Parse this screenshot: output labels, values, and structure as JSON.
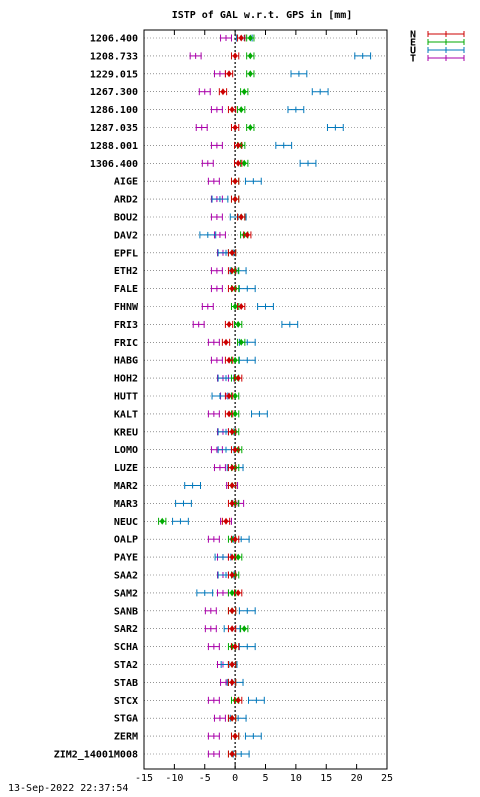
{
  "chart_data": {
    "type": "scatter",
    "title": "ISTP of GAL w.r.t. GPS in [mm]",
    "timestamp": "13-Sep-2022 22:37:54",
    "xlim": [
      -15,
      25
    ],
    "xticks": [
      -15,
      -10,
      -5,
      0,
      5,
      10,
      15,
      20,
      25
    ],
    "grid": "horizontal dotted",
    "legend_position": "top-right",
    "stations": [
      "1206.400",
      "1208.733",
      "1229.015",
      "1267.300",
      "1286.100",
      "1287.035",
      "1288.001",
      "1306.400",
      "AIGE",
      "ARD2",
      "BOU2",
      "DAV2",
      "EPFL",
      "ETH2",
      "FALE",
      "FHNW",
      "FRI3",
      "FRIC",
      "HABG",
      "HOH2",
      "HUTT",
      "KALT",
      "KREU",
      "LOMO",
      "LUZE",
      "MAR2",
      "MAR3",
      "NEUC",
      "OALP",
      "PAYE",
      "SAA2",
      "SAM2",
      "SANB",
      "SAR2",
      "SCHA",
      "STA2",
      "STAB",
      "STCX",
      "STGA",
      "ZERM",
      "ZIM2_14001M008"
    ],
    "series": [
      {
        "name": "N",
        "color": "#cc0000",
        "values": [
          1.0,
          0.0,
          -1.0,
          -2.0,
          -0.5,
          0.0,
          0.5,
          0.5,
          0.0,
          0.0,
          1.0,
          2.0,
          -0.5,
          -0.5,
          -0.5,
          1.0,
          -1.0,
          -1.5,
          -1.0,
          0.5,
          -1.0,
          -1.0,
          -0.5,
          0.0,
          -0.5,
          -0.5,
          -0.5,
          -1.5,
          0.0,
          -0.5,
          -0.5,
          0.5,
          -0.5,
          -0.5,
          0.0,
          -0.5,
          -0.5,
          0.5,
          -0.5,
          0.0,
          -0.5
        ]
      },
      {
        "name": "E",
        "color": "#00aa00",
        "values": [
          2.5,
          2.5,
          2.5,
          1.5,
          1.0,
          2.5,
          1.0,
          1.5,
          0.0,
          0.0,
          1.0,
          1.5,
          -0.5,
          0.0,
          0.0,
          0.0,
          0.5,
          1.0,
          0.0,
          0.0,
          0.0,
          0.0,
          0.0,
          0.5,
          0.0,
          -0.5,
          0.0,
          -12.0,
          -0.5,
          0.5,
          0.0,
          -0.5,
          -0.5,
          1.5,
          -0.5,
          -0.5,
          -0.5,
          0.0,
          -0.5,
          0.0,
          -0.5
        ]
      },
      {
        "name": "U",
        "color": "#0077bb",
        "values": [
          1.5,
          21.0,
          10.5,
          14.0,
          10.0,
          16.5,
          8.0,
          12.0,
          3.0,
          -2.5,
          0.5,
          -4.5,
          -1.5,
          0.5,
          2.0,
          5.0,
          9.0,
          2.0,
          2.0,
          -1.5,
          -2.5,
          4.0,
          -1.5,
          -1.5,
          0.0,
          -7.0,
          -8.5,
          -9.0,
          1.0,
          -2.0,
          -1.5,
          -5.0,
          2.0,
          -0.5,
          2.0,
          -1.0,
          0.0,
          3.5,
          0.5,
          3.0,
          1.0
        ]
      },
      {
        "name": "T",
        "color": "#aa00aa",
        "values": [
          -1.5,
          -6.5,
          -2.5,
          -5.0,
          -3.0,
          -5.5,
          -3.0,
          -4.5,
          -3.5,
          -3.0,
          -3.0,
          -2.5,
          -2.0,
          -3.0,
          -3.0,
          -4.5,
          -6.0,
          -3.5,
          -3.0,
          -2.0,
          -1.5,
          -3.5,
          -2.0,
          -3.0,
          -2.5,
          -0.5,
          0.5,
          -1.5,
          -3.5,
          -2.0,
          -2.0,
          -2.0,
          -4.0,
          -4.0,
          -3.5,
          -2.0,
          -1.5,
          -3.5,
          -2.5,
          -3.5,
          -3.5
        ]
      }
    ]
  }
}
